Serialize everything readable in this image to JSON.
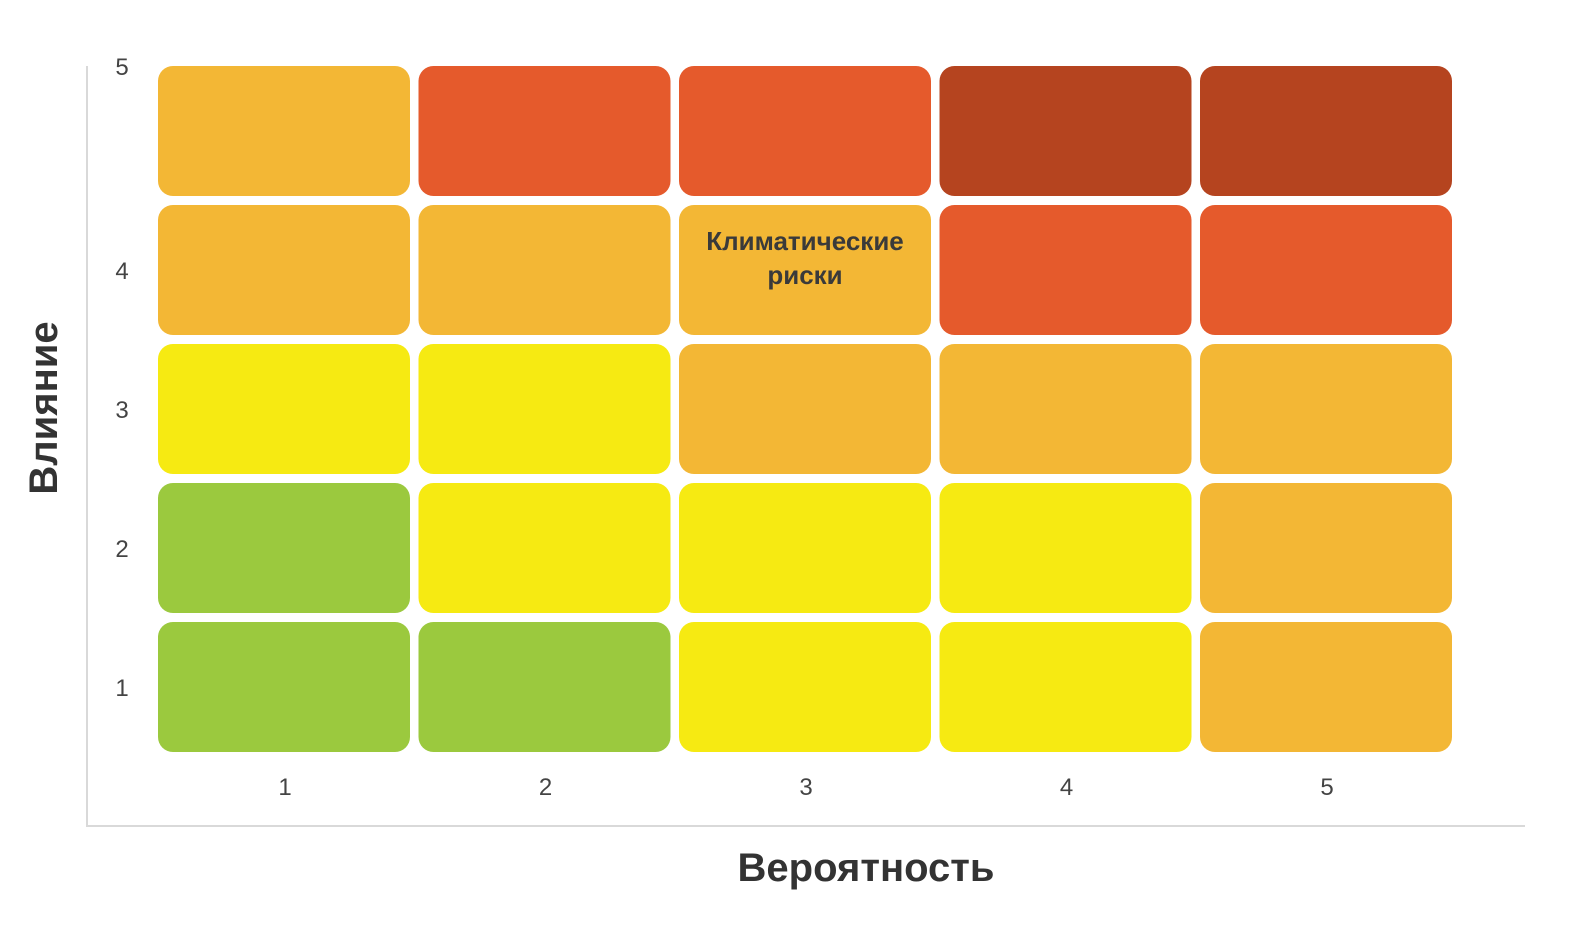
{
  "chart_data": {
    "type": "heatmap",
    "xlabel": "Вероятность",
    "ylabel": "Влияние",
    "x_categories": [
      "1",
      "2",
      "3",
      "4",
      "5"
    ],
    "y_categories": [
      "1",
      "2",
      "3",
      "4",
      "5"
    ],
    "level_colors": {
      "green": "#9bc93e",
      "yellow": "#f6ea12",
      "orange": "#f3b735",
      "red": "#e55a2c",
      "darkred": "#b5441f"
    },
    "cells": [
      [
        "green",
        "green",
        "yellow",
        "yellow",
        "orange"
      ],
      [
        "green",
        "yellow",
        "yellow",
        "yellow",
        "orange"
      ],
      [
        "yellow",
        "yellow",
        "orange",
        "orange",
        "orange"
      ],
      [
        "orange",
        "orange",
        "orange",
        "red",
        "red"
      ],
      [
        "orange",
        "red",
        "red",
        "darkred",
        "darkred"
      ]
    ],
    "annotations": [
      {
        "x": "3",
        "y": "4",
        "lines": [
          "Климатические",
          "риски"
        ]
      }
    ]
  }
}
